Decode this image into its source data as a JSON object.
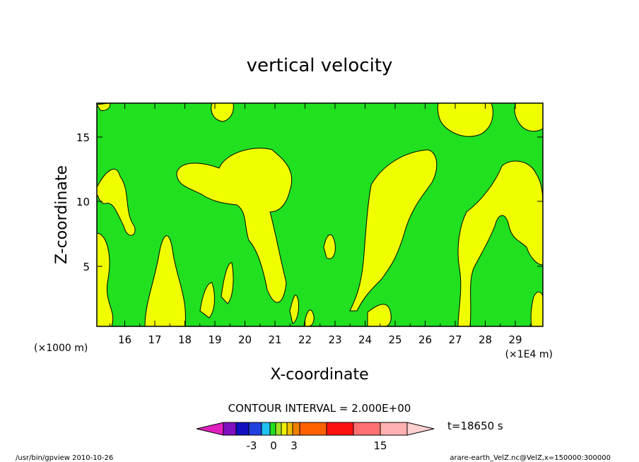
{
  "chart_data": {
    "type": "heatmap",
    "title": "vertical velocity",
    "xlabel": "X-coordinate",
    "ylabel": "Z-coordinate",
    "x_unit_left": "(×1000 m)",
    "x_unit_right": "(×1E4 m)",
    "x_ticks": [
      "16",
      "17",
      "18",
      "19",
      "20",
      "21",
      "22",
      "23",
      "24",
      "25",
      "26",
      "27",
      "28",
      "29"
    ],
    "y_ticks": [
      "5",
      "10",
      "15"
    ],
    "contour_interval": "CONTOUR INTERVAL = 2.000E+00",
    "time_label": "t=18650 s",
    "colorbar_ticks": [
      "-3",
      "0",
      "3",
      "15"
    ],
    "colorbar_colors": [
      "#e020c0",
      "#8010c0",
      "#1010c0",
      "#2040e0",
      "#20c0f0",
      "#20e020",
      "#a0e020",
      "#f0f000",
      "#f0c000",
      "#f08000",
      "#ff6000",
      "#ff1010",
      "#ff7070",
      "#ffb0b0",
      "#ffd0d0"
    ],
    "fill_colors": {
      "positive": "#f0ff00",
      "negative": "#20e020"
    },
    "footer_left": "/usr/bin/gpview   2010-10-26",
    "footer_right": "arare-earth_VelZ.nc@VelZ,x=150000:300000"
  }
}
